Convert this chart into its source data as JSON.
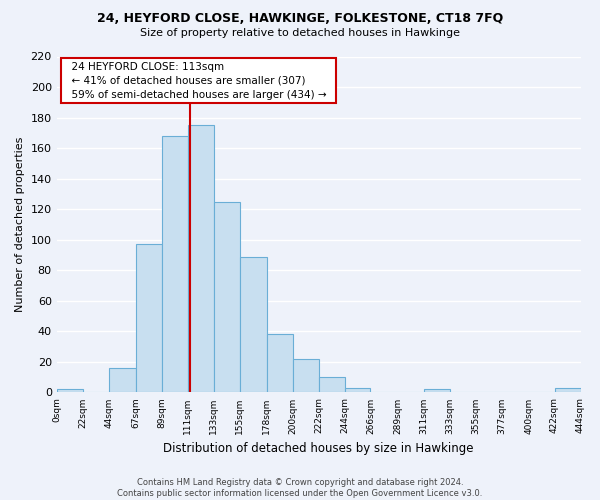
{
  "title": "24, HEYFORD CLOSE, HAWKINGE, FOLKESTONE, CT18 7FQ",
  "subtitle": "Size of property relative to detached houses in Hawkinge",
  "xlabel": "Distribution of detached houses by size in Hawkinge",
  "ylabel": "Number of detached properties",
  "bar_color": "#c8dff0",
  "bar_edge_color": "#6aaed6",
  "background_color": "#eef2fa",
  "plot_bg_color": "#eef2fa",
  "grid_color": "#ffffff",
  "annotation_box_color": "white",
  "annotation_border_color": "#cc0000",
  "vline_color": "#cc0000",
  "vline_x": 113,
  "annotation_title": "24 HEYFORD CLOSE: 113sqm",
  "annotation_line1": "← 41% of detached houses are smaller (307)",
  "annotation_line2": "59% of semi-detached houses are larger (434) →",
  "footer_line1": "Contains HM Land Registry data © Crown copyright and database right 2024.",
  "footer_line2": "Contains public sector information licensed under the Open Government Licence v3.0.",
  "tick_labels": [
    "0sqm",
    "22sqm",
    "44sqm",
    "67sqm",
    "89sqm",
    "111sqm",
    "133sqm",
    "155sqm",
    "178sqm",
    "200sqm",
    "222sqm",
    "244sqm",
    "266sqm",
    "289sqm",
    "311sqm",
    "333sqm",
    "355sqm",
    "377sqm",
    "400sqm",
    "422sqm",
    "444sqm"
  ],
  "bin_edges": [
    0,
    22,
    44,
    67,
    89,
    111,
    133,
    155,
    178,
    200,
    222,
    244,
    266,
    289,
    311,
    333,
    355,
    377,
    400,
    422,
    444
  ],
  "bar_heights": [
    2,
    0,
    16,
    97,
    168,
    175,
    125,
    89,
    38,
    22,
    10,
    3,
    0,
    0,
    2,
    0,
    0,
    0,
    0,
    3
  ],
  "ylim": [
    0,
    220
  ],
  "yticks": [
    0,
    20,
    40,
    60,
    80,
    100,
    120,
    140,
    160,
    180,
    200,
    220
  ]
}
